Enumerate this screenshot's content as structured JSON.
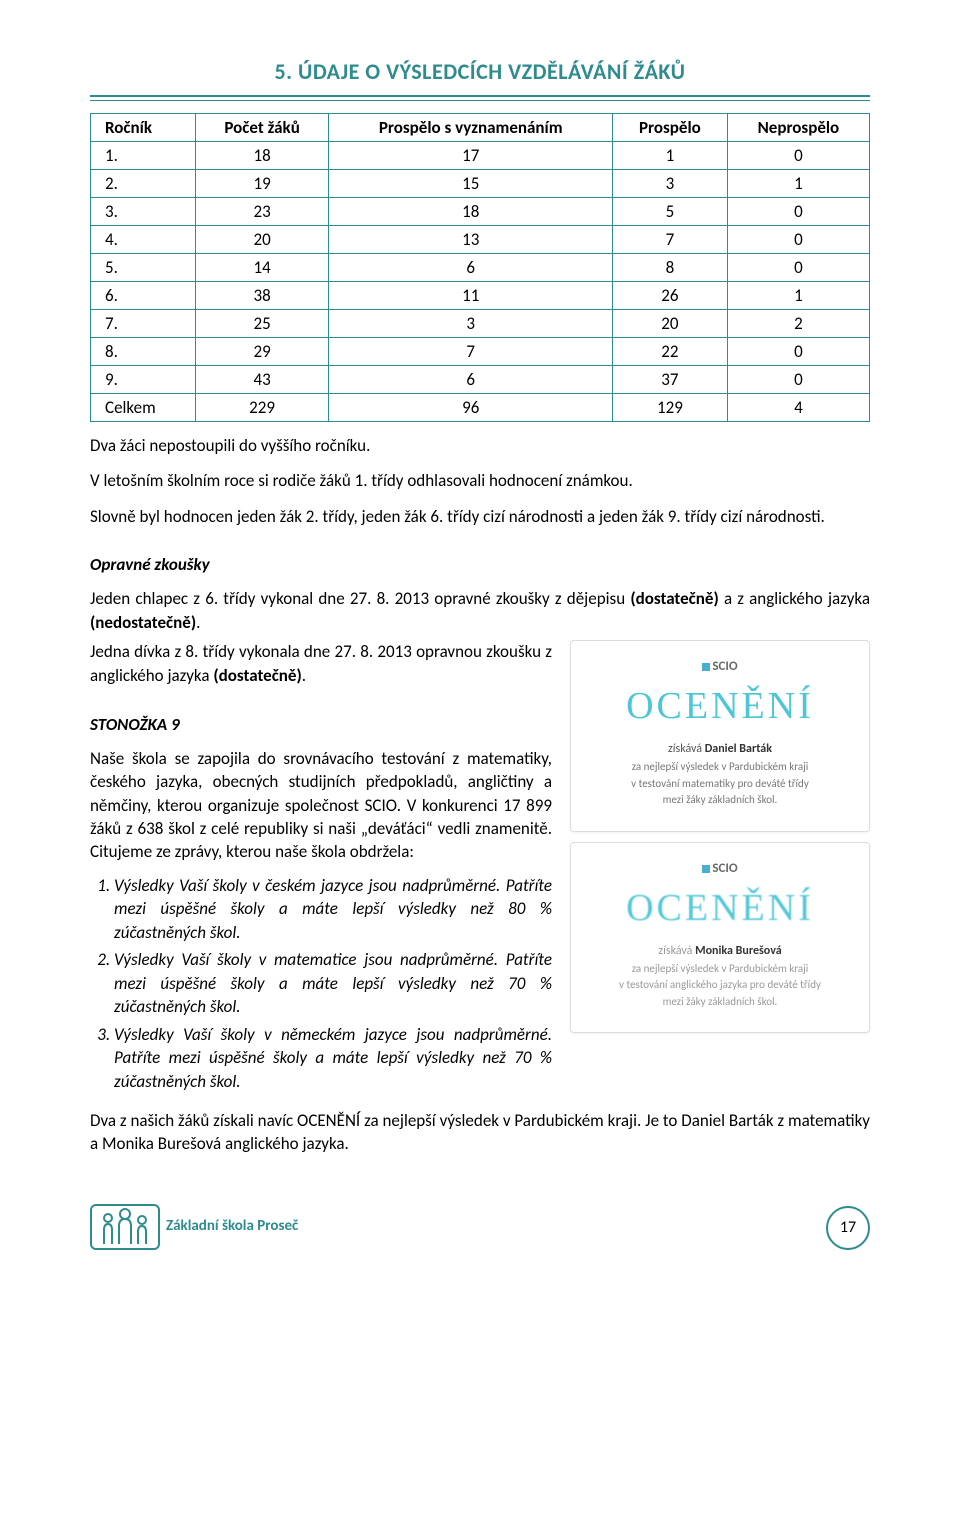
{
  "heading": "5. ÚDAJE O VÝSLEDCÍCH VZDĚLÁVÁNÍ ŽÁKŮ",
  "table": {
    "headers": [
      "Ročník",
      "Počet žáků",
      "Prospělo s vyznamenáním",
      "Prospělo",
      "Neprospělo"
    ],
    "rows": [
      [
        "1.",
        "18",
        "17",
        "1",
        "0"
      ],
      [
        "2.",
        "19",
        "15",
        "3",
        "1"
      ],
      [
        "3.",
        "23",
        "18",
        "5",
        "0"
      ],
      [
        "4.",
        "20",
        "13",
        "7",
        "0"
      ],
      [
        "5.",
        "14",
        "6",
        "8",
        "0"
      ],
      [
        "6.",
        "38",
        "11",
        "26",
        "1"
      ],
      [
        "7.",
        "25",
        "3",
        "20",
        "2"
      ],
      [
        "8.",
        "29",
        "7",
        "22",
        "0"
      ],
      [
        "9.",
        "43",
        "6",
        "37",
        "0"
      ],
      [
        "Celkem",
        "229",
        "96",
        "129",
        "4"
      ]
    ]
  },
  "p1": "Dva žáci nepostoupili do vyššího ročníku.",
  "p2": "V letošním školním roce si rodiče žáků 1. třídy odhlasovali hodnocení známkou.",
  "p3": "Slovně byl hodnocen jeden žák 2. třídy, jeden žák 6. třídy cizí národnosti a jeden žák 9. třídy cizí národnosti.",
  "opravne": {
    "title": "Opravné zkoušky",
    "p1a": "Jeden chlapec z 6. třídy vykonal dne 27. 8. 2013 opravné zkoušky z dějepisu ",
    "p1b": "(dostatečně)",
    "p1c": " a z anglického jazyka ",
    "p1d": "(nedostatečně)",
    "p1e": ".",
    "p2a": "Jedna dívka z 8. třídy vykonala dne 27. 8. 2013 opravnou zkoušku z anglického jazyka ",
    "p2b": "(dostatečně)",
    "p2c": "."
  },
  "stonozka": {
    "title": "STONOŽKA 9",
    "intro": "Naše škola se zapojila do srovnávacího testování z matematiky, českého jazyka, obecných studijních předpokladů, angličtiny a němčiny, kterou organizuje společnost SCIO. V konkurenci 17 899 žáků z 638 škol z celé republiky si naši „deváťáci“ vedli znamenitě. Citujeme ze zprávy, kterou naše škola obdržela:",
    "li1": "Výsledky Vaší školy v českém jazyce jsou nadprůměrné. Patříte mezi úspěšné školy a máte lepší výsledky než 80 % zúčastněných škol.",
    "li2": "Výsledky Vaší školy v matematice jsou nadprůměrné. Patříte mezi úspěšné školy a máte lepší výsledky než 70 % zúčastněných škol.",
    "li3": "Výsledky Vaší školy v německém jazyce jsou nadprůměrné. Patříte mezi úspěšné školy a máte lepší výsledky než 70 % zúčastněných škol.",
    "outro": "Dva z našich žáků získali navíc OCENĚNÍ za nejlepší výsledek v Pardubickém kraji. Je to Daniel Barták z matematiky a Monika Burešová anglického jazyka."
  },
  "cards": {
    "brand": "SCIO",
    "oceneni": "OCENĚNÍ",
    "c1": {
      "who_pre": "získává ",
      "who": "Daniel Barták",
      "l1": "za nejlepší výsledek v Pardubickém kraji",
      "l2": "v testování matematiky pro deváté třídy",
      "l3": "mezi žáky základních škol."
    },
    "c2": {
      "who_pre": "získává ",
      "who": "Monika Burešová",
      "l1": "za nejlepší výsledek v Pardubickém kraji",
      "l2": "v testování anglického jazyka pro deváté třídy",
      "l3": "mezi žáky základních škol."
    }
  },
  "footer": {
    "logo": "Základní škola Proseč",
    "page": "17"
  },
  "colors": {
    "accent": "#2e8b8e",
    "cardTitle": "#4ec6d6"
  }
}
